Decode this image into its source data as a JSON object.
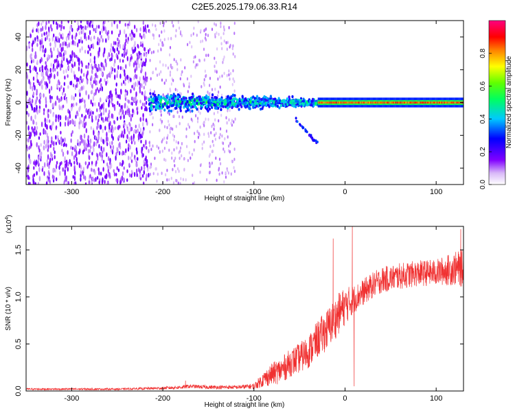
{
  "figure": {
    "title": "C2E5.2025.179.06.33.R14"
  },
  "chart_data": [
    {
      "type": "heatmap",
      "xlabel": "Height of straight line (km)",
      "ylabel": "Frequency (Hz)",
      "xlim": [
        -350,
        130
      ],
      "ylim": [
        -50,
        50
      ],
      "xticks": [
        -300,
        -200,
        -100,
        0,
        100
      ],
      "yticks": [
        -40,
        -20,
        0,
        20,
        40
      ],
      "colorbar": {
        "label": "Normalized spectral amplitude",
        "range": [
          0,
          1
        ],
        "ticks": [
          0.0,
          0.2,
          0.4,
          0.6,
          0.8
        ],
        "colormap": "rainbow (white-violet-blue-cyan-green-yellow-red-magenta)"
      },
      "features": [
        {
          "description": "noise",
          "x_range": [
            -350,
            -215
          ],
          "freq_range": [
            -50,
            50
          ],
          "amplitude": "low"
        },
        {
          "description": "noise",
          "x_range": [
            -215,
            -120
          ],
          "freq_range": [
            -50,
            50
          ],
          "amplitude": "very low"
        },
        {
          "description": "signal band",
          "x_range": [
            -215,
            -30
          ],
          "freq_center": 0,
          "freq_halfwidth": [
            8,
            3
          ],
          "amplitude": [
            0.25,
            0.55
          ]
        },
        {
          "description": "signal band",
          "x_range": [
            -30,
            130
          ],
          "freq_center": 0,
          "freq_halfwidth": 2,
          "amplitude": [
            0.6,
            0.95
          ]
        },
        {
          "description": "side trace",
          "x": [
            -55,
            -40,
            -30
          ],
          "freq": [
            -10,
            -17,
            -25
          ],
          "amplitude": "low"
        }
      ]
    },
    {
      "type": "line",
      "xlabel": "Height of straight line (km)",
      "ylabel": "SNR (10 * v/v)",
      "scale_label": "(x10",
      "scale_exponent": "4",
      "xlim": [
        -350,
        130
      ],
      "ylim": [
        0,
        1.75
      ],
      "xticks": [
        -300,
        -200,
        -100,
        0,
        100
      ],
      "yticks": [
        0.0,
        0.5,
        1.0,
        1.5
      ],
      "envelope": {
        "x": [
          -350,
          -250,
          -200,
          -180,
          -170,
          -150,
          -120,
          -100,
          -90,
          -80,
          -70,
          -60,
          -50,
          -40,
          -30,
          -20,
          -10,
          -5,
          0,
          10,
          20,
          30,
          40,
          60,
          80,
          100,
          110,
          120,
          130
        ],
        "mid": [
          0.02,
          0.02,
          0.03,
          0.04,
          0.05,
          0.04,
          0.04,
          0.05,
          0.12,
          0.18,
          0.22,
          0.3,
          0.35,
          0.42,
          0.55,
          0.65,
          0.78,
          0.85,
          0.9,
          0.98,
          1.05,
          1.12,
          1.18,
          1.22,
          1.25,
          1.26,
          1.28,
          1.3,
          1.3
        ],
        "amp": [
          0.01,
          0.01,
          0.015,
          0.02,
          0.02,
          0.02,
          0.02,
          0.03,
          0.08,
          0.12,
          0.14,
          0.15,
          0.16,
          0.18,
          0.2,
          0.22,
          0.22,
          0.22,
          0.2,
          0.15,
          0.14,
          0.14,
          0.14,
          0.14,
          0.14,
          0.14,
          0.16,
          0.18,
          0.2
        ]
      },
      "spikes": [
        {
          "x": -175,
          "y": 0.11
        },
        {
          "x": -13,
          "y": 1.62
        },
        {
          "x": -5,
          "y": 0.9
        },
        {
          "x": 8,
          "y": 1.75
        },
        {
          "x": 10,
          "y": 0.05
        },
        {
          "x": 127,
          "y": 1.72
        }
      ],
      "color": "#f03030"
    }
  ]
}
